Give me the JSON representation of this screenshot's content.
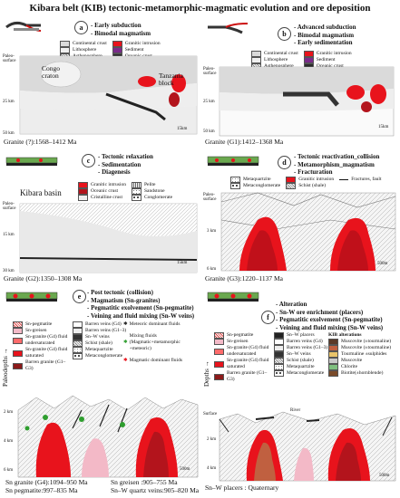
{
  "title": "Kibara belt (KIB) tectonic-metamorphic-magmatic evolution and ore deposition",
  "panels": {
    "a": {
      "letter": "a",
      "bullets": [
        "- Early subduction",
        "- Bimodal magmatism"
      ],
      "legend": [
        "Continental crust",
        "Lithosphere",
        "Asthenosphere",
        "Granitic intrusion",
        "Sediment",
        "Oceanic crust"
      ],
      "labels": {
        "craton": "Congo\ncraton",
        "block": "Tanzania\nblock",
        "surface": "Paleo-\nsurface",
        "d25": "25 km",
        "d50": "50 km",
        "scale": "15km"
      },
      "caption": "Granite (?):1568–1412 Ma"
    },
    "b": {
      "letter": "b",
      "bullets": [
        "- Advanced subduction",
        "- Bimodal magmatism",
        "- Early sedimentation"
      ],
      "legend": [
        "Continental crust",
        "Lithosphere",
        "Asthenosphere",
        "Granitic intrusion",
        "Sediment",
        "Oceanic crust"
      ],
      "labels": {
        "surface": "Paleo-\nsurface",
        "d25": "25 km",
        "d50": "50 km",
        "scale": "15km"
      },
      "caption": "Granite (G1):1412–1368 Ma"
    },
    "c": {
      "letter": "c",
      "bullets": [
        "- Tectonic relaxation",
        "- Sedimentation",
        "- Diagenesis"
      ],
      "legend": [
        "Granitic intrusion",
        "Oceanic crust",
        "Cristalline crust",
        "Pelite",
        "Sandstone",
        "Conglomerate"
      ],
      "labels": {
        "basin": "Kibara basin",
        "surface": "Paleo-\nsurface",
        "d15": "15 km",
        "d30": "30 km",
        "scale": "15km"
      },
      "caption": "Granite (G2):1350–1308 Ma"
    },
    "d": {
      "letter": "d",
      "bullets": [
        "- Tectonic reactivation_collision",
        "- Metamorphism_magmatism",
        "- Fracturation"
      ],
      "legend": [
        "Metaquartzite",
        "Metaconglomerate",
        "Granitic intrusion",
        "Schist (shale)",
        "Fractures, fault"
      ],
      "labels": {
        "surface": "Paleo-\nsurface",
        "d3": "3 km",
        "d6": "6 km",
        "scale": "500m"
      },
      "caption": "Granite (G3):1220–1137 Ma"
    },
    "e": {
      "letter": "e",
      "bullets": [
        "- Post tectonic (collision)",
        "- Magmatism (Sn-granites)",
        "- Pegmatitic exolvement (Sn-pegmatite)",
        "- Veining and fluid mixing (Sn-W veins)"
      ],
      "legend": [
        "Sn-pegmatite",
        "Sn-greisen",
        "Sn-granite (G4) fluid undersaturated",
        "Sn-granite (G4) fluid saturated",
        "Barren granite (G1–G3)",
        "Barren veins (G4)",
        "Barren veins (G1–3)",
        "Sn–W veins",
        "Schist (shale)",
        "Metaquartzite",
        "Metaconglomerate"
      ],
      "fluids": [
        "Meteoric dominant fluids",
        "Mixing fluids (Magmatic+metamorphic +meteoric)",
        "Magmatic dominant fluids"
      ],
      "labels": {
        "axis": "Paleodepths →",
        "d2": "2 km",
        "d4": "4 km",
        "d6": "6 km",
        "scale": "500m"
      },
      "caption_left": [
        "Sn granite (G4):1094–950 Ma",
        "Sn pegmatite:997–835 Ma"
      ],
      "caption_right": [
        "Sn greisen :905–755 Ma",
        "Sn–W quartz veins:905–820 Ma"
      ]
    },
    "f": {
      "letter": "f",
      "bullets": [
        "- Alteration",
        "- Sn-W ore enrichment (placers)",
        "- Pegmatitic exolvement (Sn-pegmatite)",
        "- Veining and fluid mixing (Sn-W veins)"
      ],
      "legend": [
        "Sn-pegmatite",
        "Sn-greisen",
        "Sn-granite (G4) fluid undersaturated",
        "Sn-granite (G4) fluid saturated",
        "Barren granite (G1–G3)",
        "Sn–W placers",
        "Barren veins (G4)",
        "Barren veins (G1–3)",
        "Sn–W veins",
        "Schist (shale)",
        "Metaquartzite",
        "Metaconglomerate"
      ],
      "alt_title": "KIB alterations",
      "alterations": [
        "Muscovite (±tourmaline)",
        "Muscovite (±tourmaline)",
        "Tourmaline ±sulphides",
        "Muscovite",
        "Chlorite",
        "Biotite(±hornblende)"
      ],
      "labels": {
        "axis": "Depths →",
        "surface": "Surface",
        "d2": "2 km",
        "d4": "4 km",
        "river": "River",
        "scale": "500m"
      },
      "caption": "Sn–W placers : Quaternary"
    }
  },
  "colors": {
    "granite": "#e8131c",
    "granite_dark": "#b3141c",
    "crust": "#dadada",
    "litho": "#ececec",
    "oceanic": "#2b2b2b",
    "sediment": "#7a2a8a",
    "pink": "#f3b9c7",
    "green": "#2e9e2e"
  }
}
